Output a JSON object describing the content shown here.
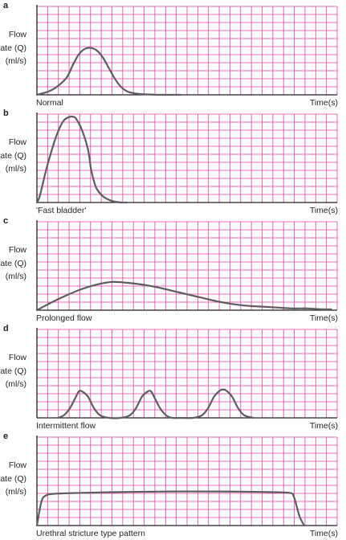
{
  "figure": {
    "colors": {
      "grid": "#e23fa4",
      "axis": "#231f20",
      "curve": "#5d5c61"
    }
  },
  "chart_data": [
    {
      "type": "line",
      "panel": "a",
      "ylabel": [
        "Flow",
        "rate (Q)",
        "(ml/s)"
      ],
      "xlabel": "Time(s)",
      "caption": "Normal",
      "grid": true,
      "xlim": [
        0,
        100
      ],
      "ylim": [
        0,
        100
      ],
      "series": [
        {
          "x": [
            0,
            4,
            7,
            10,
            12,
            14,
            16,
            18,
            20,
            22,
            24,
            26,
            28,
            30,
            32,
            34,
            37,
            40,
            45,
            48
          ],
          "y": [
            0,
            4,
            10,
            20,
            34,
            46,
            52,
            53,
            50,
            42,
            30,
            18,
            9,
            4,
            2,
            1,
            0.5,
            0,
            0,
            0
          ]
        }
      ]
    },
    {
      "type": "line",
      "panel": "b",
      "ylabel": [
        "Flow",
        "rate (Q)",
        "(ml/s)"
      ],
      "xlabel": "Time(s)",
      "caption": "'Fast bladder'",
      "grid": true,
      "xlim": [
        0,
        100
      ],
      "ylim": [
        0,
        100
      ],
      "series": [
        {
          "x": [
            0,
            1,
            3,
            5,
            7,
            9,
            11,
            12,
            13,
            15,
            17,
            18,
            19,
            20,
            22,
            24,
            26,
            28,
            30
          ],
          "y": [
            0,
            8,
            36,
            60,
            80,
            93,
            97,
            97,
            95,
            82,
            60,
            38,
            24,
            15,
            7,
            3,
            1,
            0,
            0
          ]
        }
      ]
    },
    {
      "type": "line",
      "panel": "c",
      "ylabel": [
        "Flow",
        "rate (Q)",
        "(ml/s)"
      ],
      "xlabel": "Time(s)",
      "caption": "Prolonged flow",
      "grid": true,
      "xlim": [
        0,
        100
      ],
      "ylim": [
        0,
        100
      ],
      "series": [
        {
          "x": [
            0,
            5,
            10,
            15,
            20,
            25,
            30,
            35,
            40,
            45,
            50,
            55,
            60,
            65,
            70,
            75,
            80,
            85,
            90,
            95,
            98
          ],
          "y": [
            0,
            9,
            17,
            24,
            29,
            32,
            31,
            29,
            26,
            22,
            18,
            14,
            10,
            7,
            5,
            4,
            3,
            2,
            2,
            1,
            1
          ]
        }
      ]
    },
    {
      "type": "line",
      "panel": "d",
      "ylabel": [
        "Flow",
        "rate (Q)",
        "(ml/s)"
      ],
      "xlabel": "Time(s)",
      "caption": "Intermittent flow",
      "grid": true,
      "xlim": [
        0,
        100
      ],
      "ylim": [
        0,
        100
      ],
      "series": [
        {
          "x": [
            7,
            9,
            11,
            13,
            14,
            15,
            17,
            19,
            21,
            24,
            28,
            31,
            33,
            35,
            37,
            38,
            39,
            41,
            43,
            45,
            48,
            52,
            55,
            57,
            59,
            61,
            62,
            63,
            65,
            67,
            69,
            72
          ],
          "y": [
            0,
            3,
            11,
            24,
            30,
            30,
            24,
            11,
            3,
            0,
            0,
            3,
            11,
            24,
            30,
            30,
            24,
            11,
            3,
            0,
            0,
            0,
            3,
            11,
            24,
            31,
            32,
            31,
            24,
            11,
            3,
            0
          ]
        }
      ]
    },
    {
      "type": "line",
      "panel": "e",
      "ylabel": [
        "Flow",
        "rate (Q)",
        "(ml/s)"
      ],
      "xlabel": "Time(s)",
      "caption": "Urethral stricture type pattern",
      "grid": true,
      "xlim": [
        0,
        100
      ],
      "ylim": [
        0,
        100
      ],
      "series": [
        {
          "x": [
            0,
            1.5,
            3,
            6,
            15,
            30,
            45,
            60,
            75,
            84,
            85.5,
            86.5,
            87.5,
            89
          ],
          "y": [
            0,
            27,
            34,
            36,
            37,
            38,
            38.5,
            38.5,
            38,
            37,
            33,
            22,
            10,
            0
          ]
        }
      ]
    }
  ]
}
